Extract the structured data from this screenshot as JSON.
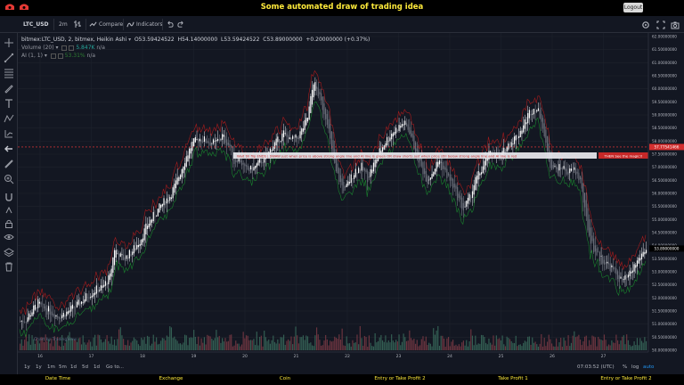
{
  "header": {
    "title": "Some automated draw of trading idea",
    "logout_label": "Logout"
  },
  "toolbar": {
    "symbol": "LTC_USD",
    "interval": "2m",
    "compare_label": "Compare",
    "indicators_label": "Indicators"
  },
  "legend": {
    "main": "bitmex:LTC_USD, 2, bitmex, Heikin Ashi",
    "open": "O53.59424522",
    "high": "H54.14000000",
    "low": "L53.59424522",
    "close": "C53.89000000",
    "change": "+0.20000000 (+0.37%)",
    "volume_label": "Volume (20)",
    "volume_value": "5.847K",
    "volume_na": "n/a",
    "ai_label": "AI (1, 1)",
    "ai_value": "53.31%",
    "ai_na": "n/a"
  },
  "bottom": {
    "ranges": [
      "1y",
      "1y",
      "1m",
      "5m",
      "1d",
      "5d",
      "1d",
      "Go to..."
    ],
    "time": "07:03:52 (UTC)",
    "pct": "%",
    "log": "log",
    "auto": "auto"
  },
  "footer": {
    "columns": [
      "Date Time",
      "Exchange",
      "Coin",
      "Entry or Take Profit 2",
      "Take Profit 1",
      "Entry or Take Profit 2"
    ]
  },
  "chart_data": {
    "type": "candlestick",
    "style": "Heikin Ashi",
    "x_ticks": [
      "16",
      "17",
      "18",
      "19",
      "20",
      "21",
      "22",
      "23",
      "24",
      "25",
      "26",
      "27"
    ],
    "y_ticks": [
      "62.00000000",
      "61.50000000",
      "61.00000000",
      "60.50000000",
      "60.00000000",
      "59.50000000",
      "59.00000000",
      "58.50000000",
      "58.00000000",
      "57.50000000",
      "57.00000000",
      "56.50000000",
      "56.00000000",
      "55.50000000",
      "55.00000000",
      "54.50000000",
      "54.00000000",
      "53.50000000",
      "53.00000000",
      "52.50000000",
      "52.00000000",
      "51.50000000",
      "51.00000000",
      "50.50000000",
      "50.00000000"
    ],
    "ylim": [
      50.0,
      62.0
    ],
    "last_price_label": "53.89000000",
    "line_price_label": "57.77541466",
    "line_price": 57.7754,
    "annotation_text": "Wait till flip ENDS   |   SWAW just when   price is above strong angle line and AI line is green      OR      draw shorts just when price still below strong angle line and AI line is red",
    "annotation_tag": "THEN See the magic!!",
    "watermark": "Chart by TradingView",
    "price_path": [
      [
        0,
        51.1
      ],
      [
        4,
        51.2
      ],
      [
        8,
        51.5
      ],
      [
        12,
        51.8
      ],
      [
        15,
        51.6
      ],
      [
        20,
        51.5
      ],
      [
        25,
        51.3
      ],
      [
        30,
        51.4
      ],
      [
        35,
        51.6
      ],
      [
        40,
        51.8
      ],
      [
        45,
        52.1
      ],
      [
        50,
        52.3
      ],
      [
        55,
        52.4
      ],
      [
        60,
        52.8
      ],
      [
        63,
        53.9
      ],
      [
        66,
        53.6
      ],
      [
        70,
        53.5
      ],
      [
        75,
        53.8
      ],
      [
        80,
        54.2
      ],
      [
        85,
        54.8
      ],
      [
        90,
        55.2
      ],
      [
        95,
        55.6
      ],
      [
        100,
        55.9
      ],
      [
        105,
        56.5
      ],
      [
        110,
        57.3
      ],
      [
        115,
        57.9
      ],
      [
        120,
        58.1
      ],
      [
        125,
        58.0
      ],
      [
        130,
        57.9
      ],
      [
        135,
        58.2
      ],
      [
        140,
        57.8
      ],
      [
        143,
        57.2
      ],
      [
        146,
        57.4
      ],
      [
        150,
        56.9
      ],
      [
        155,
        56.9
      ],
      [
        160,
        57.2
      ],
      [
        165,
        57.4
      ],
      [
        168,
        57.8
      ],
      [
        172,
        58.0
      ],
      [
        176,
        58.3
      ],
      [
        180,
        58.0
      ],
      [
        185,
        58.1
      ],
      [
        188,
        58.4
      ],
      [
        192,
        58.9
      ],
      [
        196,
        60.3
      ],
      [
        199,
        59.8
      ],
      [
        202,
        59.3
      ],
      [
        205,
        58.8
      ],
      [
        208,
        57.6
      ],
      [
        211,
        56.8
      ],
      [
        214,
        56.4
      ],
      [
        217,
        56.1
      ],
      [
        220,
        56.5
      ],
      [
        224,
        56.9
      ],
      [
        228,
        57.0
      ],
      [
        232,
        56.6
      ],
      [
        236,
        57.1
      ],
      [
        240,
        57.6
      ],
      [
        244,
        58.0
      ],
      [
        248,
        58.3
      ],
      [
        252,
        58.5
      ],
      [
        256,
        58.7
      ],
      [
        260,
        58.4
      ],
      [
        264,
        57.6
      ],
      [
        268,
        57.0
      ],
      [
        272,
        56.5
      ],
      [
        276,
        56.9
      ],
      [
        280,
        57.3
      ],
      [
        284,
        56.8
      ],
      [
        288,
        56.4
      ],
      [
        292,
        55.9
      ],
      [
        296,
        55.4
      ],
      [
        300,
        55.8
      ],
      [
        304,
        56.5
      ],
      [
        308,
        56.9
      ],
      [
        312,
        57.4
      ],
      [
        316,
        57.6
      ],
      [
        320,
        57.3
      ],
      [
        324,
        57.7
      ],
      [
        328,
        58.0
      ],
      [
        332,
        58.2
      ],
      [
        336,
        58.6
      ],
      [
        340,
        59.1
      ],
      [
        344,
        59.3
      ],
      [
        348,
        58.9
      ],
      [
        351,
        57.8
      ],
      [
        354,
        57.1
      ],
      [
        358,
        56.9
      ],
      [
        362,
        57.0
      ],
      [
        366,
        56.8
      ],
      [
        370,
        56.9
      ],
      [
        374,
        56.5
      ],
      [
        377,
        55.3
      ],
      [
        380,
        54.4
      ],
      [
        383,
        53.9
      ],
      [
        386,
        53.6
      ],
      [
        390,
        53.4
      ],
      [
        394,
        53.2
      ],
      [
        398,
        52.9
      ],
      [
        402,
        52.6
      ],
      [
        406,
        52.8
      ],
      [
        410,
        53.2
      ],
      [
        414,
        53.6
      ],
      [
        418,
        53.9
      ]
    ]
  }
}
